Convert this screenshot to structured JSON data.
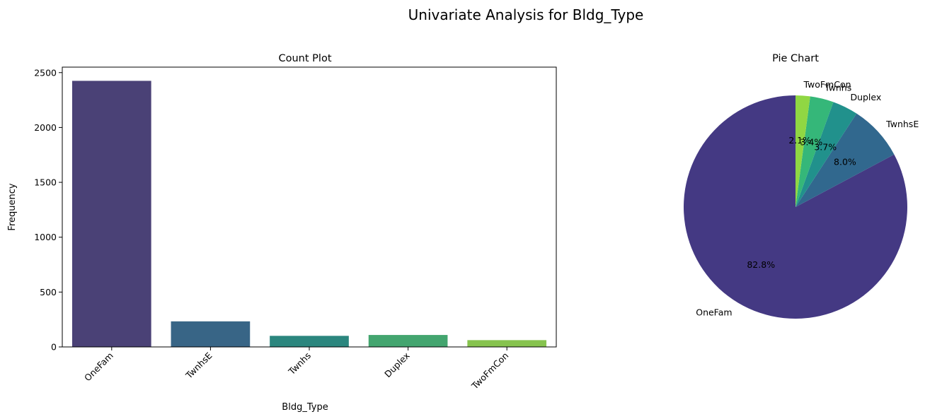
{
  "figure": {
    "suptitle": "Univariate Analysis for Bldg_Type"
  },
  "chart_data": [
    {
      "type": "bar",
      "title": "Count Plot",
      "xlabel": "Bldg_Type",
      "ylabel": "Frequency",
      "categories": [
        "OneFam",
        "TwnhsE",
        "Twnhs",
        "Duplex",
        "TwoFmCon"
      ],
      "values": [
        2425,
        233,
        101,
        109,
        62
      ],
      "ylim": [
        0,
        2550
      ],
      "yticks": [
        0,
        500,
        1000,
        1500,
        2000,
        2500
      ],
      "xtick_rotation": 45,
      "colors": [
        "#4a4176",
        "#386586",
        "#2b867e",
        "#43a56f",
        "#86c34e"
      ],
      "grid": false
    },
    {
      "type": "pie",
      "title": "Pie Chart",
      "labels": [
        "OneFam",
        "TwnhsE",
        "Duplex",
        "Twnhs",
        "TwoFmCon"
      ],
      "values": [
        82.8,
        8.0,
        3.7,
        3.4,
        2.1
      ],
      "pct_labels": [
        "82.8%",
        "8.0%",
        "3.7%",
        "3.4%",
        "2.1%"
      ],
      "colors": [
        "#443983",
        "#31688e",
        "#21918c",
        "#35b779",
        "#90d743"
      ],
      "start_angle": 90,
      "direction": "counterclockwise"
    }
  ]
}
